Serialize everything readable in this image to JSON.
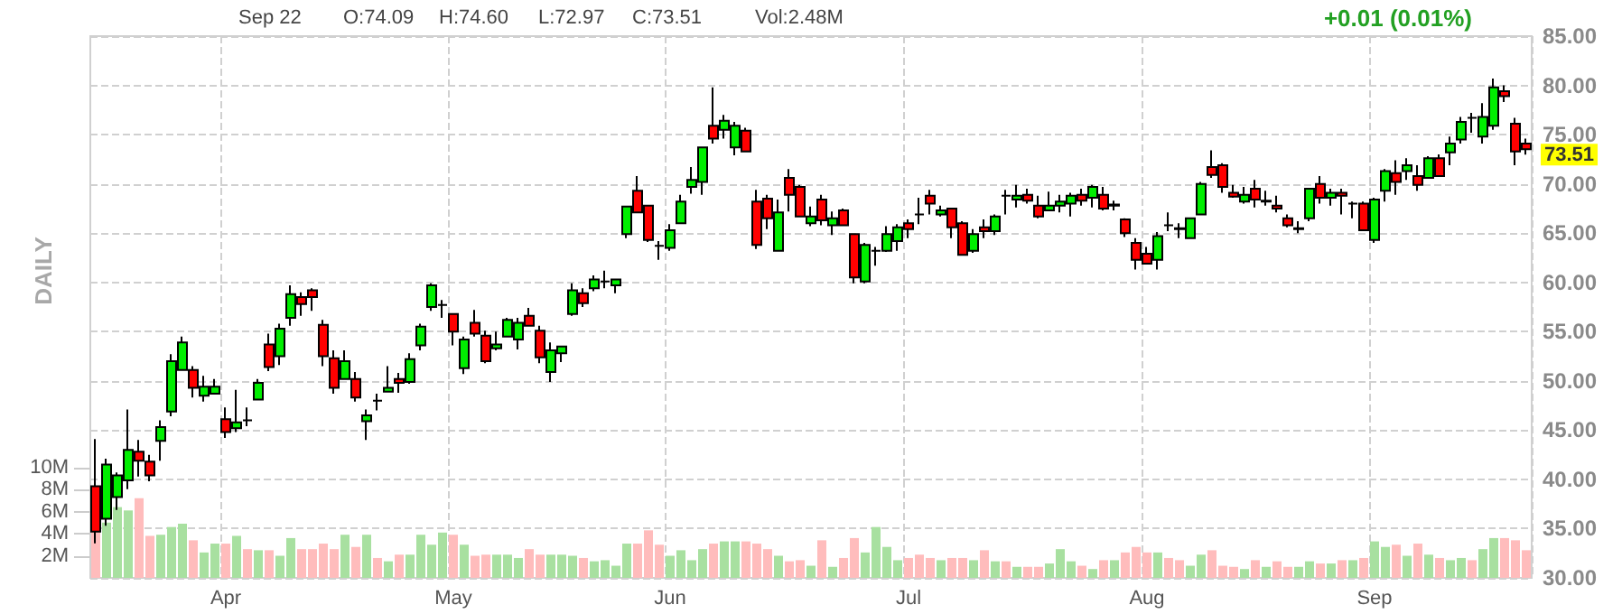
{
  "chart_data": {
    "type": "candlestick",
    "annotations": [
      "Sep 22",
      "O:74.09",
      "H:74.60",
      "L:72.97",
      "C:73.51",
      "Vol:2.48M",
      "+0.01 (0.01%)",
      "73.51",
      "DAILY"
    ],
    "categories": [
      null,
      null,
      null,
      null,
      null,
      null,
      null,
      null,
      null,
      null,
      null,
      null,
      "Apr",
      null,
      null,
      null,
      null,
      null,
      null,
      null,
      null,
      null,
      null,
      null,
      null,
      null,
      null,
      null,
      null,
      null,
      null,
      null,
      null,
      "May",
      null,
      null,
      null,
      null,
      null,
      null,
      null,
      null,
      null,
      null,
      null,
      null,
      null,
      null,
      null,
      null,
      null,
      null,
      null,
      "Jun",
      null,
      null,
      null,
      null,
      null,
      null,
      null,
      null,
      null,
      null,
      null,
      null,
      null,
      null,
      null,
      null,
      null,
      null,
      null,
      null,
      null,
      "Jul",
      null,
      null,
      null,
      null,
      null,
      null,
      null,
      null,
      null,
      null,
      null,
      null,
      null,
      null,
      null,
      null,
      null,
      null,
      null,
      null,
      null,
      "Aug",
      null,
      null,
      null,
      null,
      null,
      null,
      null,
      null,
      null,
      null,
      null,
      null,
      null,
      null,
      null,
      null,
      null,
      null,
      null,
      null,
      "Sep",
      null,
      null,
      null,
      null,
      null,
      null,
      null,
      null,
      null,
      null,
      null,
      null,
      null,
      null
    ],
    "ohlc": [
      [
        39.3,
        44.1,
        33.5,
        34.7
      ],
      [
        36.0,
        42.1,
        35.3,
        41.5
      ],
      [
        38.2,
        40.7,
        36.9,
        40.4
      ],
      [
        39.9,
        47.1,
        39.0,
        43.0
      ],
      [
        42.8,
        44.0,
        40.3,
        41.9
      ],
      [
        41.8,
        42.5,
        39.8,
        40.4
      ],
      [
        43.9,
        46.0,
        41.9,
        45.3
      ],
      [
        46.9,
        52.7,
        46.4,
        52.0
      ],
      [
        51.1,
        54.5,
        51.1,
        53.9
      ],
      [
        51.1,
        51.5,
        48.3,
        49.3
      ],
      [
        48.5,
        50.5,
        47.9,
        49.4
      ],
      [
        48.7,
        50.2,
        48.7,
        49.4
      ],
      [
        46.1,
        47.3,
        44.2,
        44.8
      ],
      [
        45.2,
        49.1,
        44.8,
        45.8
      ],
      [
        46.0,
        47.3,
        45.4,
        46.0
      ],
      [
        48.1,
        50.2,
        48.1,
        49.8
      ],
      [
        53.7,
        54.8,
        51.0,
        51.4
      ],
      [
        52.5,
        55.8,
        51.6,
        55.3
      ],
      [
        56.4,
        59.7,
        55.6,
        58.8
      ],
      [
        58.5,
        59.0,
        56.6,
        57.8
      ],
      [
        59.2,
        59.4,
        57.1,
        58.5
      ],
      [
        55.7,
        56.2,
        51.5,
        52.5
      ],
      [
        52.3,
        53.1,
        48.7,
        49.3
      ],
      [
        50.2,
        53.1,
        50.2,
        52.0
      ],
      [
        50.2,
        50.9,
        47.9,
        48.3
      ],
      [
        45.9,
        47.1,
        44.0,
        46.5
      ],
      [
        48.0,
        48.7,
        47.0,
        48.0
      ],
      [
        48.9,
        51.5,
        48.9,
        49.3
      ],
      [
        50.2,
        50.8,
        48.8,
        49.8
      ],
      [
        49.9,
        52.8,
        49.7,
        52.2
      ],
      [
        53.6,
        55.8,
        53.1,
        55.5
      ],
      [
        57.5,
        59.9,
        57.1,
        59.7
      ],
      [
        57.7,
        58.2,
        56.4,
        57.7
      ],
      [
        56.8,
        56.8,
        53.6,
        55.0
      ],
      [
        51.3,
        54.5,
        50.7,
        54.2
      ],
      [
        55.9,
        57.2,
        54.5,
        54.8
      ],
      [
        54.6,
        55.1,
        51.8,
        52.0
      ],
      [
        53.3,
        55.0,
        53.1,
        53.7
      ],
      [
        54.5,
        56.4,
        54.5,
        56.2
      ],
      [
        54.2,
        56.4,
        53.2,
        55.9
      ],
      [
        56.6,
        57.4,
        55.5,
        55.6
      ],
      [
        55.1,
        55.6,
        51.8,
        52.4
      ],
      [
        50.9,
        53.9,
        49.9,
        53.1
      ],
      [
        52.8,
        53.5,
        51.9,
        53.5
      ],
      [
        56.8,
        59.9,
        56.6,
        59.2
      ],
      [
        58.9,
        59.4,
        57.5,
        57.9
      ],
      [
        59.4,
        60.7,
        59.1,
        60.3
      ],
      [
        60.1,
        61.2,
        59.4,
        60.1
      ],
      [
        59.7,
        60.3,
        58.9,
        60.3
      ],
      [
        64.9,
        67.7,
        64.5,
        67.7
      ],
      [
        69.3,
        70.8,
        67.1,
        67.1
      ],
      [
        67.8,
        67.8,
        64.1,
        64.3
      ],
      [
        63.7,
        64.2,
        62.3,
        63.7
      ],
      [
        63.5,
        65.9,
        63.2,
        65.3
      ],
      [
        66.0,
        68.9,
        66.0,
        68.2
      ],
      [
        69.7,
        71.7,
        69.0,
        70.4
      ],
      [
        70.2,
        73.7,
        68.9,
        73.7
      ],
      [
        75.9,
        79.8,
        74.1,
        74.6
      ],
      [
        75.5,
        77.0,
        74.6,
        76.4
      ],
      [
        73.7,
        76.3,
        72.9,
        75.9
      ],
      [
        75.4,
        75.7,
        73.3,
        73.3
      ],
      [
        68.2,
        69.4,
        63.4,
        63.8
      ],
      [
        68.5,
        68.9,
        65.4,
        66.5
      ],
      [
        63.2,
        68.4,
        63.2,
        67.1
      ],
      [
        70.6,
        71.5,
        67.2,
        68.9
      ],
      [
        69.7,
        69.9,
        66.7,
        66.7
      ],
      [
        66.0,
        67.7,
        65.7,
        66.7
      ],
      [
        68.4,
        68.9,
        65.8,
        66.3
      ],
      [
        65.8,
        67.2,
        64.8,
        66.5
      ],
      [
        67.3,
        67.5,
        65.8,
        65.8
      ],
      [
        64.9,
        64.9,
        59.9,
        60.5
      ],
      [
        60.1,
        64.0,
        59.9,
        63.8
      ],
      [
        63.2,
        63.6,
        61.7,
        63.2
      ],
      [
        63.2,
        65.7,
        63.1,
        64.9
      ],
      [
        64.2,
        65.9,
        63.2,
        65.6
      ],
      [
        66.0,
        66.4,
        64.5,
        65.4
      ],
      [
        66.9,
        68.6,
        65.9,
        66.9
      ],
      [
        68.8,
        69.4,
        66.9,
        68.0
      ],
      [
        66.9,
        67.8,
        66.7,
        67.3
      ],
      [
        67.5,
        67.5,
        64.5,
        65.6
      ],
      [
        66.0,
        66.2,
        62.8,
        62.8
      ],
      [
        63.2,
        65.4,
        63.0,
        64.9
      ],
      [
        65.6,
        66.4,
        64.5,
        65.2
      ],
      [
        65.2,
        66.9,
        64.8,
        66.7
      ],
      [
        68.8,
        69.4,
        66.9,
        68.8
      ],
      [
        68.4,
        69.9,
        67.6,
        68.8
      ],
      [
        68.9,
        69.5,
        68.0,
        68.3
      ],
      [
        67.8,
        68.8,
        66.5,
        66.7
      ],
      [
        67.3,
        69.2,
        67.3,
        67.8
      ],
      [
        67.8,
        68.9,
        67.1,
        68.2
      ],
      [
        68.0,
        69.1,
        66.7,
        68.8
      ],
      [
        68.9,
        69.5,
        67.8,
        68.3
      ],
      [
        68.6,
        69.9,
        67.6,
        69.7
      ],
      [
        68.9,
        69.7,
        67.3,
        67.5
      ],
      [
        67.8,
        68.3,
        67.3,
        67.9
      ],
      [
        66.4,
        66.5,
        64.6,
        65.0
      ],
      [
        64.0,
        64.5,
        61.3,
        62.3
      ],
      [
        62.9,
        63.6,
        61.9,
        61.9
      ],
      [
        62.3,
        65.1,
        61.3,
        64.7
      ],
      [
        65.8,
        67.1,
        65.2,
        65.8
      ],
      [
        65.4,
        66.0,
        64.5,
        65.5
      ],
      [
        64.5,
        66.5,
        64.5,
        66.5
      ],
      [
        66.9,
        70.2,
        66.8,
        70.0
      ],
      [
        71.7,
        73.4,
        70.6,
        70.9
      ],
      [
        71.9,
        72.1,
        69.1,
        69.7
      ],
      [
        69.1,
        69.9,
        68.6,
        68.7
      ],
      [
        68.2,
        69.7,
        68.0,
        68.9
      ],
      [
        69.5,
        70.4,
        67.6,
        68.4
      ],
      [
        68.2,
        69.3,
        67.8,
        68.3
      ],
      [
        67.8,
        68.8,
        67.1,
        67.5
      ],
      [
        66.5,
        66.9,
        65.6,
        65.8
      ],
      [
        65.4,
        66.2,
        65.0,
        65.5
      ],
      [
        66.5,
        69.5,
        66.2,
        69.5
      ],
      [
        70.0,
        70.8,
        68.0,
        68.6
      ],
      [
        68.6,
        69.5,
        67.8,
        69.1
      ],
      [
        69.1,
        69.5,
        66.9,
        68.8
      ],
      [
        68.0,
        68.2,
        66.5,
        68.0
      ],
      [
        68.0,
        68.2,
        65.3,
        65.3
      ],
      [
        64.3,
        68.6,
        64.0,
        68.4
      ],
      [
        69.3,
        71.5,
        68.2,
        71.3
      ],
      [
        71.1,
        72.4,
        68.9,
        70.2
      ],
      [
        71.3,
        72.6,
        70.4,
        71.9
      ],
      [
        70.8,
        71.9,
        69.3,
        69.9
      ],
      [
        70.6,
        72.8,
        70.6,
        72.6
      ],
      [
        72.6,
        73.0,
        70.8,
        70.8
      ],
      [
        73.2,
        74.8,
        71.9,
        74.1
      ],
      [
        74.5,
        76.8,
        74.1,
        76.3
      ],
      [
        76.7,
        77.2,
        75.2,
        76.7
      ],
      [
        74.8,
        78.2,
        74.1,
        76.8
      ],
      [
        75.9,
        80.7,
        75.5,
        79.8
      ],
      [
        79.4,
        80.0,
        78.3,
        78.9
      ],
      [
        76.1,
        76.7,
        71.9,
        73.3
      ],
      [
        74.09,
        74.6,
        72.97,
        73.51
      ]
    ],
    "colors": [
      "#ff0000",
      "#00ee00",
      "#00ee00",
      "#00ee00",
      "#ff0000",
      "#ff0000",
      "#00ee00",
      "#00ee00",
      "#00ee00",
      "#ff0000",
      "#00ee00",
      "#00ee00",
      "#ff0000",
      "#00ee00",
      "#000000",
      "#00ee00",
      "#ff0000",
      "#00ee00",
      "#00ee00",
      "#ff0000",
      "#ff0000",
      "#ff0000",
      "#ff0000",
      "#00ee00",
      "#ff0000",
      "#00ee00",
      "#000000",
      "#00ee00",
      "#ff0000",
      "#00ee00",
      "#00ee00",
      "#00ee00",
      "#000000",
      "#ff0000",
      "#00ee00",
      "#ff0000",
      "#ff0000",
      "#00ee00",
      "#00ee00",
      "#00ee00",
      "#ff0000",
      "#ff0000",
      "#00ee00",
      "#00ee00",
      "#00ee00",
      "#ff0000",
      "#00ee00",
      "#000000",
      "#00ee00",
      "#00ee00",
      "#ff0000",
      "#ff0000",
      "#000000",
      "#00ee00",
      "#00ee00",
      "#00ee00",
      "#00ee00",
      "#ff0000",
      "#00ee00",
      "#00ee00",
      "#ff0000",
      "#ff0000",
      "#ff0000",
      "#00ee00",
      "#ff0000",
      "#ff0000",
      "#00ee00",
      "#ff0000",
      "#00ee00",
      "#ff0000",
      "#ff0000",
      "#00ee00",
      "#000000",
      "#00ee00",
      "#00ee00",
      "#ff0000",
      "#000000",
      "#ff0000",
      "#00ee00",
      "#ff0000",
      "#ff0000",
      "#00ee00",
      "#ff0000",
      "#00ee00",
      "#000000",
      "#00ee00",
      "#ff0000",
      "#ff0000",
      "#00ee00",
      "#00ee00",
      "#00ee00",
      "#ff0000",
      "#00ee00",
      "#ff0000",
      "#000000",
      "#ff0000",
      "#ff0000",
      "#ff0000",
      "#00ee00",
      "#000000",
      "#000000",
      "#00ee00",
      "#00ee00",
      "#ff0000",
      "#ff0000",
      "#ff0000",
      "#00ee00",
      "#ff0000",
      "#000000",
      "#ff0000",
      "#ff0000",
      "#000000",
      "#00ee00",
      "#ff0000",
      "#00ee00",
      "#ff0000",
      "#000000",
      "#ff0000",
      "#00ee00",
      "#00ee00",
      "#ff0000",
      "#00ee00",
      "#ff0000",
      "#00ee00",
      "#ff0000",
      "#00ee00",
      "#00ee00",
      "#000000",
      "#00ee00",
      "#00ee00",
      "#ff0000",
      "#ff0000",
      "#ff0000"
    ],
    "series": [
      {
        "type": "bar",
        "axis": "y2",
        "values": [
          4.2,
          5.0,
          6.4,
          6.1,
          7.2,
          3.8,
          3.9,
          4.6,
          4.9,
          3.4,
          2.3,
          3.1,
          3.1,
          3.8,
          2.6,
          2.5,
          2.5,
          2.0,
          3.6,
          2.6,
          2.6,
          3.1,
          2.6,
          3.9,
          2.8,
          3.9,
          1.8,
          1.5,
          2.1,
          2.1,
          3.9,
          3.0,
          4.1,
          3.9,
          3.0,
          2.0,
          2.1,
          2.1,
          2.1,
          1.8,
          2.6,
          2.1,
          2.1,
          2.1,
          2.0,
          1.8,
          1.5,
          1.6,
          1.1,
          3.1,
          3.1,
          4.3,
          3.0,
          2.0,
          2.5,
          1.6,
          2.6,
          3.1,
          3.3,
          3.3,
          3.3,
          3.1,
          2.6,
          2.0,
          1.5,
          1.6,
          1.1,
          3.4,
          1.0,
          1.8,
          3.6,
          2.3,
          4.6,
          2.8,
          1.6,
          1.8,
          2.1,
          1.8,
          1.6,
          1.8,
          1.8,
          1.6,
          2.5,
          1.5,
          1.5,
          1.0,
          1.0,
          1.0,
          1.3,
          2.6,
          1.5,
          1.1,
          0.8,
          1.6,
          1.6,
          2.3,
          2.8,
          2.3,
          2.3,
          1.8,
          1.6,
          1.1,
          2.1,
          2.5,
          1.1,
          1.0,
          0.8,
          1.6,
          1.0,
          1.5,
          1.0,
          1.0,
          1.5,
          1.3,
          1.3,
          1.6,
          1.6,
          1.8,
          3.3,
          2.8,
          3.0,
          2.0,
          3.1,
          2.1,
          1.8,
          1.6,
          1.8,
          1.6,
          2.6,
          3.6,
          3.6,
          3.4,
          2.5
        ],
        "colors": [
          "#ffbcbc",
          "#a8e0a0",
          "#a8e0a0",
          "#a8e0a0",
          "#ffbcbc",
          "#ffbcbc",
          "#a8e0a0",
          "#a8e0a0",
          "#a8e0a0",
          "#ffbcbc",
          "#a8e0a0",
          "#a8e0a0",
          "#ffbcbc",
          "#a8e0a0",
          "#ffbcbc",
          "#a8e0a0",
          "#ffbcbc",
          "#a8e0a0",
          "#a8e0a0",
          "#ffbcbc",
          "#ffbcbc",
          "#ffbcbc",
          "#ffbcbc",
          "#a8e0a0",
          "#ffbcbc",
          "#a8e0a0",
          "#ffbcbc",
          "#a8e0a0",
          "#ffbcbc",
          "#a8e0a0",
          "#a8e0a0",
          "#a8e0a0",
          "#a8e0a0",
          "#ffbcbc",
          "#a8e0a0",
          "#ffbcbc",
          "#ffbcbc",
          "#a8e0a0",
          "#a8e0a0",
          "#a8e0a0",
          "#ffbcbc",
          "#ffbcbc",
          "#a8e0a0",
          "#a8e0a0",
          "#a8e0a0",
          "#ffbcbc",
          "#a8e0a0",
          "#a8e0a0",
          "#a8e0a0",
          "#a8e0a0",
          "#ffbcbc",
          "#ffbcbc",
          "#ffbcbc",
          "#a8e0a0",
          "#a8e0a0",
          "#a8e0a0",
          "#a8e0a0",
          "#ffbcbc",
          "#a8e0a0",
          "#a8e0a0",
          "#ffbcbc",
          "#ffbcbc",
          "#ffbcbc",
          "#a8e0a0",
          "#ffbcbc",
          "#ffbcbc",
          "#a8e0a0",
          "#ffbcbc",
          "#a8e0a0",
          "#ffbcbc",
          "#ffbcbc",
          "#a8e0a0",
          "#a8e0a0",
          "#a8e0a0",
          "#a8e0a0",
          "#ffbcbc",
          "#ffbcbc",
          "#ffbcbc",
          "#a8e0a0",
          "#ffbcbc",
          "#ffbcbc",
          "#a8e0a0",
          "#ffbcbc",
          "#a8e0a0",
          "#ffbcbc",
          "#a8e0a0",
          "#ffbcbc",
          "#ffbcbc",
          "#a8e0a0",
          "#a8e0a0",
          "#a8e0a0",
          "#ffbcbc",
          "#a8e0a0",
          "#ffbcbc",
          "#a8e0a0",
          "#ffbcbc",
          "#ffbcbc",
          "#ffbcbc",
          "#a8e0a0",
          "#ffbcbc",
          "#ffbcbc",
          "#a8e0a0",
          "#a8e0a0",
          "#ffbcbc",
          "#ffbcbc",
          "#ffbcbc",
          "#a8e0a0",
          "#ffbcbc",
          "#a8e0a0",
          "#ffbcbc",
          "#ffbcbc",
          "#a8e0a0",
          "#a8e0a0",
          "#ffbcbc",
          "#a8e0a0",
          "#ffbcbc",
          "#a8e0a0",
          "#ffbcbc",
          "#a8e0a0",
          "#a8e0a0",
          "#ffbcbc",
          "#a8e0a0",
          "#ffbcbc",
          "#a8e0a0",
          "#ffbcbc",
          "#a8e0a0",
          "#a8e0a0",
          "#ffbcbc",
          "#a8e0a0",
          "#a8e0a0",
          "#ffbcbc",
          "#ffbcbc",
          "#ffbcbc"
        ]
      }
    ],
    "ylim": [
      30,
      85
    ],
    "yticks": [
      {
        "value": 30,
        "label": "30.00"
      },
      {
        "value": 35,
        "label": "35.00"
      },
      {
        "value": 40,
        "label": "40.00"
      },
      {
        "value": 45,
        "label": "45.00"
      },
      {
        "value": 50,
        "label": "50.00"
      },
      {
        "value": 55,
        "label": "55.00"
      },
      {
        "value": 60,
        "label": "60.00"
      },
      {
        "value": 65,
        "label": "65.00"
      },
      {
        "value": 70,
        "label": "70.00"
      },
      {
        "value": 75,
        "label": "75.00"
      },
      {
        "value": 80,
        "label": "80.00"
      },
      {
        "value": 85,
        "label": "85.00"
      }
    ],
    "y2lim": [
      0,
      49
    ],
    "y2ticks": [
      {
        "value": 2,
        "label": "2M"
      },
      {
        "value": 4,
        "label": "4M"
      },
      {
        "value": 6,
        "label": "6M"
      },
      {
        "value": 8,
        "label": "8M"
      },
      {
        "value": 10,
        "label": "10M"
      }
    ],
    "grid": true
  }
}
